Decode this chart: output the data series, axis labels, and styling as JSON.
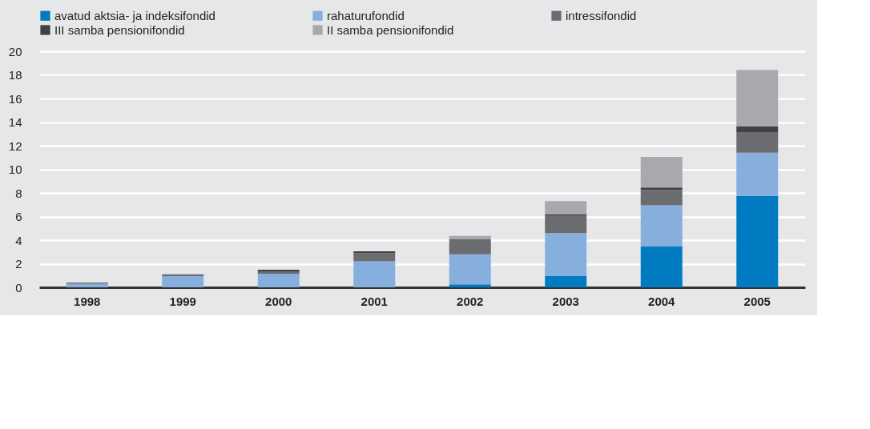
{
  "chart_data": {
    "type": "bar",
    "stacked": true,
    "categories": [
      "1998",
      "1999",
      "2000",
      "2001",
      "2002",
      "2003",
      "2004",
      "2005"
    ],
    "series": [
      {
        "name": "avatud aktsia- ja indeksifondid",
        "color": "#007bc2",
        "values": [
          0,
          0,
          0,
          0,
          0.25,
          0.95,
          3.5,
          7.75
        ]
      },
      {
        "name": "rahaturufondid",
        "color": "#87afdd",
        "values": [
          0.3,
          0.95,
          1.15,
          2.2,
          2.55,
          3.65,
          3.45,
          3.65
        ]
      },
      {
        "name": "intressifondid",
        "color": "#6b6c70",
        "values": [
          0.1,
          0.15,
          0.2,
          0.7,
          1.3,
          1.5,
          1.3,
          1.75
        ]
      },
      {
        "name": "III samba pensionifondid",
        "color": "#414243",
        "values": [
          0,
          0,
          0.15,
          0.15,
          0,
          0.1,
          0.2,
          0.5
        ]
      },
      {
        "name": "II samba pensionifondid",
        "color": "#a8a9ad",
        "values": [
          0,
          0,
          0,
          0,
          0.25,
          1.1,
          2.6,
          4.75
        ]
      }
    ],
    "ylim": [
      0,
      20
    ],
    "yticks": [
      0,
      2,
      4,
      6,
      8,
      10,
      12,
      14,
      16,
      18,
      20
    ],
    "grid": "y",
    "legend": "top"
  }
}
